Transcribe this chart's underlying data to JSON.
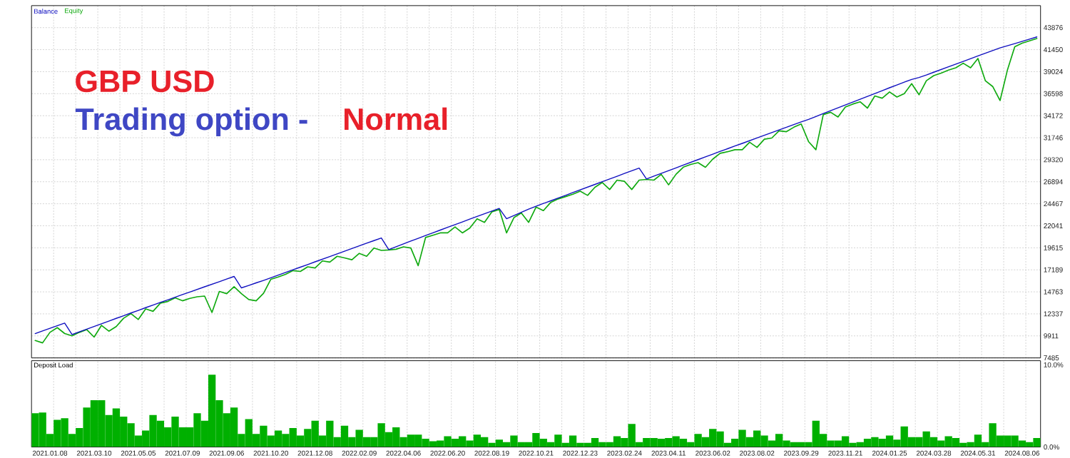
{
  "chart_data": [
    {
      "type": "line",
      "title": "GBP USD",
      "subtitle": "Trading option -",
      "annotations": [
        "Normal"
      ],
      "categories": [
        null,
        null,
        "2021.01.08",
        null,
        null,
        null,
        null,
        null,
        "2021.03.10",
        null,
        null,
        null,
        null,
        null,
        "2021.05.05",
        null,
        null,
        null,
        null,
        null,
        "2021.07.09",
        null,
        null,
        null,
        null,
        null,
        "2021.09.06",
        null,
        null,
        null,
        null,
        null,
        "2021.10.20",
        null,
        null,
        null,
        null,
        null,
        "2021.12.08",
        null,
        null,
        null,
        null,
        null,
        "2022.02.09",
        null,
        null,
        null,
        null,
        null,
        "2022.04.06",
        null,
        null,
        null,
        null,
        null,
        "2022.06.20",
        null,
        null,
        null,
        null,
        null,
        "2022.08.19",
        null,
        null,
        null,
        null,
        null,
        "2022.10.21",
        null,
        null,
        null,
        null,
        null,
        "2022.12.23",
        null,
        null,
        null,
        null,
        null,
        "2023.02.24",
        null,
        null,
        null,
        null,
        null,
        "2023.04.11",
        null,
        null,
        null,
        null,
        null,
        "2023.06.02",
        null,
        null,
        null,
        null,
        null,
        "2023.08.02",
        null,
        null,
        null,
        null,
        null,
        "2023.09.29",
        null,
        null,
        null,
        null,
        null,
        "2023.11.21",
        null,
        null,
        null,
        null,
        null,
        "2024.01.25",
        null,
        null,
        null,
        null,
        null,
        "2024.03.28",
        null,
        null,
        null,
        null,
        null,
        "2024.05.31",
        null,
        null,
        null,
        null,
        null,
        "2024.08.06",
        null,
        null
      ],
      "series": [
        {
          "name": "Balance",
          "color": "#1010c0",
          "values": [
            10160,
            10450,
            10740,
            11030,
            11320,
            10060,
            10360,
            10660,
            10950,
            11250,
            11540,
            11840,
            12130,
            12430,
            12720,
            13020,
            13310,
            13600,
            13880,
            14170,
            14460,
            14740,
            15030,
            15320,
            15600,
            15880,
            16170,
            16460,
            15200,
            15470,
            15750,
            16020,
            16310,
            16600,
            16900,
            17190,
            17480,
            17770,
            18070,
            18360,
            18650,
            18950,
            19240,
            19540,
            19830,
            20130,
            20410,
            20700,
            19420,
            19730,
            20040,
            20360,
            20660,
            20970,
            21270,
            21570,
            21870,
            22170,
            22470,
            22770,
            23070,
            23370,
            23660,
            23950,
            22820,
            23170,
            23520,
            23870,
            24190,
            24500,
            24790,
            25100,
            25390,
            25700,
            26000,
            26300,
            26600,
            26900,
            27200,
            27500,
            27800,
            28110,
            28400,
            27200,
            27520,
            27820,
            28120,
            28420,
            28730,
            29030,
            29330,
            29640,
            29930,
            30240,
            30530,
            30830,
            31120,
            31420,
            31720,
            32010,
            32310,
            32610,
            32890,
            33190,
            33480,
            33760,
            34080,
            34410,
            34730,
            35040,
            35360,
            35670,
            35980,
            36300,
            36620,
            36930,
            37250,
            37560,
            37870,
            38170,
            38380,
            38650,
            38960,
            39260,
            39560,
            39860,
            40150,
            40450,
            40750,
            41050,
            41340,
            41640,
            41880,
            42120,
            42360,
            42600,
            42850
          ]
        },
        {
          "name": "Equity",
          "color": "#10aa10",
          "values": [
            9400,
            9140,
            10300,
            10820,
            10170,
            9910,
            10300,
            10600,
            9780,
            11070,
            10430,
            10940,
            11850,
            12360,
            11720,
            12880,
            12620,
            13520,
            13700,
            14100,
            13780,
            14040,
            14220,
            14300,
            12490,
            14810,
            14560,
            15330,
            14560,
            13910,
            13780,
            14600,
            16150,
            16400,
            16700,
            17100,
            17010,
            17520,
            17390,
            18170,
            18040,
            18680,
            18500,
            18300,
            19000,
            18680,
            19590,
            19330,
            19380,
            19460,
            19720,
            19590,
            17650,
            20750,
            21000,
            21260,
            21260,
            21910,
            21260,
            21780,
            22810,
            22420,
            23580,
            23840,
            21260,
            22940,
            23450,
            22420,
            24100,
            23710,
            24620,
            25000,
            25250,
            25520,
            25850,
            25390,
            26290,
            26810,
            26040,
            27070,
            26940,
            26040,
            27070,
            27150,
            27070,
            27710,
            26550,
            27710,
            28500,
            28800,
            29000,
            28490,
            29390,
            30030,
            30200,
            30420,
            30420,
            31250,
            30680,
            31580,
            31710,
            32500,
            32410,
            32900,
            33260,
            31320,
            30420,
            34290,
            34550,
            34030,
            35120,
            35450,
            35700,
            35010,
            36350,
            36100,
            36790,
            36230,
            36610,
            37700,
            36480,
            38030,
            38590,
            38860,
            39190,
            39450,
            39950,
            39450,
            40480,
            38030,
            37390,
            35840,
            39190,
            41770,
            42160,
            42420,
            42680
          ]
        }
      ],
      "ylim": [
        7485,
        46300
      ],
      "yticks": [
        7485,
        9911,
        12337,
        14763,
        17189,
        19615,
        22041,
        24467,
        26894,
        29320,
        31746,
        34172,
        36598,
        39024,
        41450,
        43876
      ],
      "grid": true,
      "legend": "top left",
      "tick_labels": "y"
    },
    {
      "type": "bar",
      "title": "Deposit Load",
      "color": "#00b000",
      "categories": [
        null,
        null,
        "2021.01.08",
        null,
        null,
        null,
        null,
        null,
        "2021.03.10",
        null,
        null,
        null,
        null,
        null,
        "2021.05.05",
        null,
        null,
        null,
        null,
        null,
        "2021.07.09",
        null,
        null,
        null,
        null,
        null,
        "2021.09.06",
        null,
        null,
        null,
        null,
        null,
        "2021.10.20",
        null,
        null,
        null,
        null,
        null,
        "2021.12.08",
        null,
        null,
        null,
        null,
        null,
        "2022.02.09",
        null,
        null,
        null,
        null,
        null,
        "2022.04.06",
        null,
        null,
        null,
        null,
        null,
        "2022.06.20",
        null,
        null,
        null,
        null,
        null,
        "2022.08.19",
        null,
        null,
        null,
        null,
        null,
        "2022.10.21",
        null,
        null,
        null,
        null,
        null,
        "2022.12.23",
        null,
        null,
        null,
        null,
        null,
        "2023.02.24",
        null,
        null,
        null,
        null,
        null,
        "2023.04.11",
        null,
        null,
        null,
        null,
        null,
        "2023.06.02",
        null,
        null,
        null,
        null,
        null,
        "2023.08.02",
        null,
        null,
        null,
        null,
        null,
        "2023.09.29",
        null,
        null,
        null,
        null,
        null,
        "2023.11.21",
        null,
        null,
        null,
        null,
        null,
        "2024.01.25",
        null,
        null,
        null,
        null,
        null,
        "2024.03.28",
        null,
        null,
        null,
        null,
        null,
        "2024.05.31",
        null,
        null,
        null,
        null,
        null,
        "2024.08.06",
        null,
        null
      ],
      "values": [
        4.1,
        4.2,
        1.6,
        3.3,
        3.5,
        1.6,
        2.3,
        4.8,
        5.7,
        5.7,
        3.9,
        4.7,
        3.7,
        2.9,
        1.4,
        2.0,
        3.9,
        3.2,
        2.4,
        3.7,
        2.4,
        2.4,
        4.1,
        3.2,
        8.8,
        5.7,
        4.1,
        4.8,
        1.6,
        3.4,
        1.6,
        2.6,
        1.4,
        2.0,
        1.6,
        2.3,
        1.4,
        2.2,
        3.2,
        1.4,
        3.2,
        1.2,
        2.6,
        1.2,
        2.1,
        1.2,
        1.2,
        2.9,
        1.8,
        2.4,
        1.2,
        1.5,
        1.5,
        1.0,
        0.7,
        0.8,
        1.3,
        1.0,
        1.3,
        0.8,
        1.5,
        1.2,
        0.5,
        0.9,
        0.6,
        1.4,
        0.6,
        0.6,
        1.7,
        1.0,
        0.6,
        1.5,
        0.5,
        1.4,
        0.5,
        0.5,
        1.1,
        0.6,
        0.6,
        1.3,
        1.1,
        2.8,
        0.6,
        1.1,
        1.1,
        1.0,
        1.1,
        1.3,
        1.0,
        0.6,
        1.6,
        1.2,
        2.2,
        1.9,
        0.5,
        1.0,
        2.1,
        1.2,
        2.0,
        1.4,
        0.8,
        1.6,
        0.8,
        0.6,
        0.6,
        0.6,
        3.2,
        1.6,
        0.8,
        0.8,
        1.3,
        0.5,
        0.6,
        1.0,
        1.2,
        1.0,
        1.4,
        0.9,
        2.5,
        1.2,
        1.2,
        1.9,
        1.2,
        0.8,
        1.3,
        1.1,
        0.5,
        0.6,
        1.5,
        0.6,
        2.9,
        1.4,
        1.4,
        1.4,
        0.8,
        0.6,
        1.1
      ],
      "ylim": [
        0,
        10.5
      ],
      "yticks": [
        {
          "value": 0,
          "label": "0.0%"
        },
        {
          "value": 10,
          "label": "10.0%"
        }
      ],
      "grid": "x"
    }
  ]
}
